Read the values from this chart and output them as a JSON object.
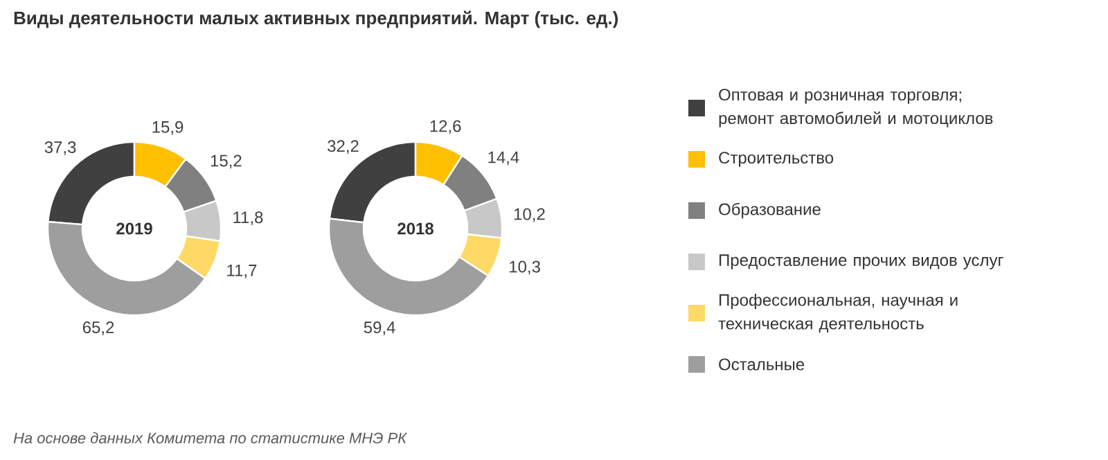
{
  "chart_data": [
    {
      "type": "donut",
      "title": "Виды деятельности малых активных предприятий. Март (тыс. ед.)",
      "categories": [
        "Оптовая и розничная торговля; ремонт автомобилей и мотоциклов",
        "Строительство",
        "Образование",
        "Предоставление прочих видов услуг",
        "Профессиональная, научная и техническая деятельность",
        "Остальные"
      ],
      "values": [
        37.3,
        15.9,
        15.2,
        11.8,
        11.7,
        65.2
      ],
      "value_labels": [
        "37,3",
        "15,9",
        "15,2",
        "11,8",
        "11,7",
        "65,2"
      ],
      "colors": [
        "#404040",
        "#ffc000",
        "#808080",
        "#c8c8c8",
        "#ffd966",
        "#9e9e9e"
      ],
      "legend": "right",
      "annotations": [
        "2019",
        "На основе данных Комитета по статистике МНЭ РК"
      ]
    },
    {
      "type": "donut",
      "categories": [
        null,
        null,
        null,
        null,
        null,
        null
      ],
      "values": [
        32.2,
        12.6,
        14.4,
        10.2,
        10.3,
        59.4
      ],
      "value_labels": [
        "32,2",
        "12,6",
        "14,4",
        "10,2",
        "10,3",
        "59,4"
      ],
      "colors": [
        "#404040",
        "#ffc000",
        "#808080",
        "#c8c8c8",
        "#ffd966",
        "#9e9e9e"
      ],
      "legend": false,
      "annotations": [
        "2018"
      ]
    }
  ]
}
